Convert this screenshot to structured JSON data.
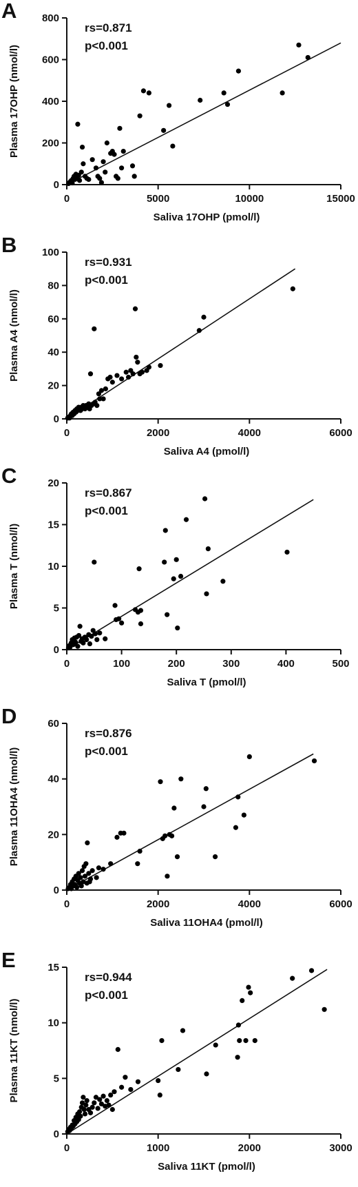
{
  "chart_data": [
    {
      "panel": "A",
      "type": "scatter",
      "xlabel": "Saliva 17OHP (pmol/l)",
      "ylabel": "Plasma 17OHP (nmol/l)",
      "xlim": [
        0,
        15000
      ],
      "ylim": [
        0,
        800
      ],
      "xticks": [
        0,
        5000,
        10000,
        15000
      ],
      "yticks": [
        0,
        200,
        400,
        600,
        800
      ],
      "annotation": [
        "rs=0.871",
        "p<0.001"
      ],
      "fit_line": [
        [
          0,
          0
        ],
        [
          15000,
          680
        ]
      ],
      "points": [
        [
          100,
          5
        ],
        [
          150,
          10
        ],
        [
          200,
          15
        ],
        [
          250,
          20
        ],
        [
          300,
          8
        ],
        [
          350,
          30
        ],
        [
          400,
          40
        ],
        [
          450,
          25
        ],
        [
          500,
          50
        ],
        [
          550,
          35
        ],
        [
          600,
          290
        ],
        [
          650,
          45
        ],
        [
          700,
          20
        ],
        [
          800,
          60
        ],
        [
          850,
          180
        ],
        [
          900,
          100
        ],
        [
          1000,
          40
        ],
        [
          1100,
          30
        ],
        [
          1200,
          25
        ],
        [
          1400,
          120
        ],
        [
          1600,
          80
        ],
        [
          1700,
          40
        ],
        [
          1800,
          30
        ],
        [
          1900,
          10
        ],
        [
          2000,
          110
        ],
        [
          2100,
          60
        ],
        [
          2200,
          200
        ],
        [
          2400,
          150
        ],
        [
          2500,
          160
        ],
        [
          2600,
          145
        ],
        [
          2700,
          40
        ],
        [
          2800,
          30
        ],
        [
          2900,
          270
        ],
        [
          3000,
          80
        ],
        [
          3100,
          160
        ],
        [
          3600,
          90
        ],
        [
          3700,
          40
        ],
        [
          4000,
          330
        ],
        [
          4200,
          450
        ],
        [
          4500,
          440
        ],
        [
          5300,
          260
        ],
        [
          5600,
          380
        ],
        [
          5800,
          185
        ],
        [
          7300,
          405
        ],
        [
          8600,
          440
        ],
        [
          8800,
          385
        ],
        [
          9400,
          545
        ],
        [
          11800,
          440
        ],
        [
          12700,
          670
        ],
        [
          13200,
          610
        ]
      ]
    },
    {
      "panel": "B",
      "type": "scatter",
      "xlabel": "Saliva A4 (pmol/l)",
      "ylabel": "Plasma A4 (nmol/l)",
      "xlim": [
        0,
        6000
      ],
      "ylim": [
        0,
        100
      ],
      "xticks": [
        0,
        2000,
        4000,
        6000
      ],
      "yticks": [
        0,
        20,
        40,
        60,
        80,
        100
      ],
      "annotation": [
        "rs=0.931",
        "p<0.001"
      ],
      "fit_line": [
        [
          0,
          0
        ],
        [
          5000,
          90
        ]
      ],
      "points": [
        [
          20,
          0.5
        ],
        [
          40,
          1
        ],
        [
          60,
          0.5
        ],
        [
          80,
          2
        ],
        [
          100,
          3
        ],
        [
          120,
          2
        ],
        [
          140,
          4
        ],
        [
          160,
          3
        ],
        [
          180,
          5
        ],
        [
          200,
          4
        ],
        [
          220,
          6
        ],
        [
          240,
          5
        ],
        [
          260,
          7
        ],
        [
          280,
          6
        ],
        [
          300,
          5
        ],
        [
          320,
          7
        ],
        [
          340,
          6
        ],
        [
          360,
          8
        ],
        [
          380,
          7
        ],
        [
          400,
          6
        ],
        [
          420,
          8
        ],
        [
          450,
          7
        ],
        [
          480,
          9
        ],
        [
          500,
          6
        ],
        [
          520,
          27
        ],
        [
          540,
          8
        ],
        [
          580,
          9
        ],
        [
          600,
          54
        ],
        [
          620,
          10
        ],
        [
          660,
          8
        ],
        [
          700,
          15
        ],
        [
          720,
          12
        ],
        [
          760,
          17
        ],
        [
          800,
          12
        ],
        [
          850,
          18
        ],
        [
          900,
          24
        ],
        [
          950,
          25
        ],
        [
          1000,
          22
        ],
        [
          1100,
          26
        ],
        [
          1200,
          24
        ],
        [
          1300,
          28
        ],
        [
          1350,
          25
        ],
        [
          1400,
          29
        ],
        [
          1450,
          27
        ],
        [
          1500,
          66
        ],
        [
          1520,
          37
        ],
        [
          1550,
          34
        ],
        [
          1600,
          27
        ],
        [
          1650,
          28
        ],
        [
          1750,
          29
        ],
        [
          1800,
          31
        ],
        [
          2050,
          32
        ],
        [
          2900,
          53
        ],
        [
          3000,
          61
        ],
        [
          4950,
          78
        ]
      ]
    },
    {
      "panel": "C",
      "type": "scatter",
      "xlabel": "Saliva T (pmol/l)",
      "ylabel": "Plasma T (nmol/l)",
      "xlim": [
        0,
        500
      ],
      "ylim": [
        0,
        20
      ],
      "xticks": [
        0,
        100,
        200,
        300,
        400,
        500
      ],
      "yticks": [
        0,
        5,
        10,
        15,
        20
      ],
      "annotation": [
        "rs=0.867",
        "p<0.001"
      ],
      "fit_line": [
        [
          0,
          0
        ],
        [
          450,
          18
        ]
      ],
      "points": [
        [
          3,
          0.2
        ],
        [
          5,
          0.5
        ],
        [
          6,
          0.3
        ],
        [
          8,
          0.8
        ],
        [
          10,
          1.2
        ],
        [
          12,
          0.6
        ],
        [
          14,
          1.4
        ],
        [
          16,
          0.9
        ],
        [
          18,
          1.5
        ],
        [
          20,
          0.4
        ],
        [
          22,
          1.7
        ],
        [
          24,
          2.8
        ],
        [
          26,
          1.0
        ],
        [
          28,
          1.3
        ],
        [
          30,
          0.8
        ],
        [
          33,
          1.5
        ],
        [
          36,
          1.2
        ],
        [
          40,
          1.8
        ],
        [
          42,
          0.7
        ],
        [
          45,
          1.6
        ],
        [
          48,
          2.3
        ],
        [
          50,
          10.5
        ],
        [
          52,
          1.9
        ],
        [
          55,
          1.2
        ],
        [
          60,
          2.0
        ],
        [
          70,
          1.3
        ],
        [
          88,
          5.3
        ],
        [
          90,
          3.6
        ],
        [
          95,
          3.7
        ],
        [
          100,
          3.2
        ],
        [
          125,
          4.8
        ],
        [
          130,
          4.5
        ],
        [
          132,
          9.7
        ],
        [
          135,
          3.1
        ],
        [
          135,
          4.7
        ],
        [
          178,
          10.5
        ],
        [
          180,
          14.3
        ],
        [
          183,
          4.2
        ],
        [
          195,
          8.5
        ],
        [
          200,
          10.8
        ],
        [
          202,
          2.6
        ],
        [
          208,
          8.8
        ],
        [
          218,
          15.6
        ],
        [
          252,
          18.1
        ],
        [
          255,
          6.7
        ],
        [
          258,
          12.1
        ],
        [
          285,
          8.2
        ],
        [
          402,
          11.7
        ]
      ]
    },
    {
      "panel": "D",
      "type": "scatter",
      "xlabel": "Saliva 11OHA4 (pmol/l)",
      "ylabel": "Plasma 11OHA4 (nmol/l)",
      "xlim": [
        0,
        6000
      ],
      "ylim": [
        0,
        60
      ],
      "xticks": [
        0,
        2000,
        4000,
        6000
      ],
      "yticks": [
        0,
        20,
        40,
        60
      ],
      "annotation": [
        "rs=0.876",
        "p<0.001"
      ],
      "fit_line": [
        [
          0,
          0
        ],
        [
          5400,
          49
        ]
      ],
      "points": [
        [
          30,
          0.5
        ],
        [
          60,
          1
        ],
        [
          80,
          2
        ],
        [
          100,
          0.5
        ],
        [
          120,
          3
        ],
        [
          140,
          1.5
        ],
        [
          160,
          4
        ],
        [
          180,
          2
        ],
        [
          200,
          5
        ],
        [
          220,
          1
        ],
        [
          240,
          3.5
        ],
        [
          260,
          6
        ],
        [
          280,
          2.5
        ],
        [
          300,
          4.5
        ],
        [
          320,
          1.5
        ],
        [
          340,
          7
        ],
        [
          360,
          3
        ],
        [
          380,
          8.5
        ],
        [
          400,
          5
        ],
        [
          420,
          9.5
        ],
        [
          440,
          2.5
        ],
        [
          450,
          17
        ],
        [
          480,
          6
        ],
        [
          500,
          3
        ],
        [
          520,
          4
        ],
        [
          560,
          7
        ],
        [
          650,
          4.5
        ],
        [
          700,
          8
        ],
        [
          800,
          7.5
        ],
        [
          960,
          9.5
        ],
        [
          1100,
          19
        ],
        [
          1180,
          20.5
        ],
        [
          1250,
          20.5
        ],
        [
          1550,
          9.5
        ],
        [
          1600,
          14
        ],
        [
          2050,
          39
        ],
        [
          2100,
          18.5
        ],
        [
          2150,
          19.5
        ],
        [
          2200,
          5
        ],
        [
          2250,
          20
        ],
        [
          2300,
          19.5
        ],
        [
          2350,
          29.5
        ],
        [
          2420,
          12
        ],
        [
          2500,
          40
        ],
        [
          3000,
          30
        ],
        [
          3050,
          36.5
        ],
        [
          3250,
          12
        ],
        [
          3700,
          22.5
        ],
        [
          3750,
          33.5
        ],
        [
          3880,
          27
        ],
        [
          4000,
          48
        ],
        [
          5420,
          46.5
        ]
      ]
    },
    {
      "panel": "E",
      "type": "scatter",
      "xlabel": "Saliva 11KT (pmol/l)",
      "ylabel": "Plasma 11KT (nmol/l)",
      "xlim": [
        0,
        3000
      ],
      "ylim": [
        0,
        15
      ],
      "xticks": [
        0,
        1000,
        2000,
        3000
      ],
      "yticks": [
        0,
        5,
        10,
        15
      ],
      "annotation": [
        "rs=0.944",
        "p<0.001"
      ],
      "fit_line": [
        [
          0,
          0
        ],
        [
          2850,
          14.8
        ]
      ],
      "points": [
        [
          10,
          0.2
        ],
        [
          20,
          0.4
        ],
        [
          30,
          0.3
        ],
        [
          40,
          0.6
        ],
        [
          50,
          0.5
        ],
        [
          60,
          0.8
        ],
        [
          70,
          0.7
        ],
        [
          80,
          1.2
        ],
        [
          90,
          0.9
        ],
        [
          100,
          1.5
        ],
        [
          110,
          1.1
        ],
        [
          120,
          1.8
        ],
        [
          130,
          1.3
        ],
        [
          140,
          2.0
        ],
        [
          150,
          1.6
        ],
        [
          160,
          2.4
        ],
        [
          170,
          2.8
        ],
        [
          180,
          3.3
        ],
        [
          190,
          2.2
        ],
        [
          200,
          1.8
        ],
        [
          210,
          2.6
        ],
        [
          220,
          3.0
        ],
        [
          240,
          2.2
        ],
        [
          260,
          1.9
        ],
        [
          280,
          2.4
        ],
        [
          300,
          2.8
        ],
        [
          320,
          3.3
        ],
        [
          340,
          2.3
        ],
        [
          360,
          3.1
        ],
        [
          380,
          2.7
        ],
        [
          400,
          3.4
        ],
        [
          420,
          2.5
        ],
        [
          440,
          3.0
        ],
        [
          460,
          2.6
        ],
        [
          480,
          3.5
        ],
        [
          500,
          2.2
        ],
        [
          520,
          3.8
        ],
        [
          560,
          7.6
        ],
        [
          600,
          4.2
        ],
        [
          640,
          5.1
        ],
        [
          700,
          4.0
        ],
        [
          780,
          4.7
        ],
        [
          1000,
          4.8
        ],
        [
          1020,
          3.5
        ],
        [
          1040,
          8.4
        ],
        [
          1220,
          5.8
        ],
        [
          1270,
          9.3
        ],
        [
          1530,
          5.4
        ],
        [
          1630,
          8.0
        ],
        [
          1870,
          6.9
        ],
        [
          1880,
          9.8
        ],
        [
          1890,
          8.4
        ],
        [
          1920,
          12.0
        ],
        [
          1960,
          8.4
        ],
        [
          1990,
          13.2
        ],
        [
          2010,
          12.7
        ],
        [
          2060,
          8.4
        ],
        [
          2470,
          14.0
        ],
        [
          2680,
          14.7
        ],
        [
          2820,
          11.2
        ]
      ]
    }
  ]
}
